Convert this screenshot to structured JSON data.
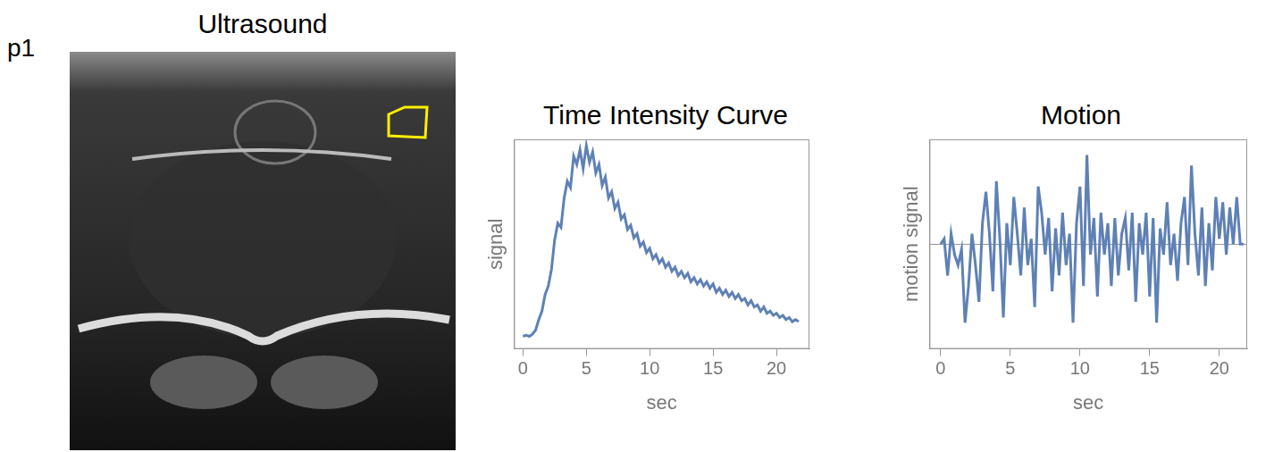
{
  "panel_label": "p1",
  "image": {
    "title": "Ultrasound"
  },
  "chart_data": [
    {
      "type": "line",
      "title": "Time Intensity Curve",
      "x_label": "sec",
      "y_label": "signal",
      "x": [
        0,
        0.25,
        0.5,
        0.75,
        1,
        1.25,
        1.5,
        1.75,
        2,
        2.25,
        2.5,
        2.75,
        3,
        3.25,
        3.5,
        3.75,
        4,
        4.25,
        4.5,
        4.75,
        5,
        5.25,
        5.5,
        5.75,
        6,
        6.25,
        6.5,
        6.75,
        7,
        7.25,
        7.5,
        7.75,
        8,
        8.25,
        8.5,
        8.75,
        9,
        9.25,
        9.5,
        9.75,
        10,
        10.25,
        10.5,
        10.75,
        11,
        11.25,
        11.5,
        11.75,
        12,
        12.25,
        12.5,
        12.75,
        13,
        13.25,
        13.5,
        13.75,
        14,
        14.25,
        14.5,
        14.75,
        15,
        15.25,
        15.5,
        15.75,
        16,
        16.25,
        16.5,
        16.75,
        17,
        17.25,
        17.5,
        17.75,
        18,
        18.25,
        18.5,
        18.75,
        19,
        19.25,
        19.5,
        19.75,
        20,
        20.25,
        20.5,
        20.75,
        21,
        21.25,
        21.5,
        21.75
      ],
      "values": [
        6,
        6.5,
        6,
        7,
        9,
        14,
        18,
        26,
        30,
        38,
        52,
        60,
        58,
        72,
        80,
        77,
        92,
        88,
        95,
        86,
        97,
        89,
        94,
        84,
        88,
        78,
        82,
        72,
        75,
        67,
        70,
        62,
        64,
        57,
        59,
        53,
        55,
        49,
        51,
        46,
        48,
        43,
        45,
        41,
        43,
        39,
        41,
        37,
        39,
        35,
        37,
        34,
        36,
        32,
        34,
        31,
        33,
        30,
        32,
        29,
        31,
        27,
        29,
        26,
        28,
        25,
        27,
        24,
        26,
        23,
        24,
        21,
        23,
        20,
        21,
        18,
        20,
        17,
        18,
        16,
        17,
        15,
        16,
        14,
        15,
        13,
        14,
        13
      ],
      "color": "#5e81b5",
      "marker": "none",
      "line_style": "solid",
      "xlim": [
        -0.7,
        22.6
      ],
      "xticks": [
        0,
        5,
        10,
        15,
        20
      ],
      "ylim": [
        0,
        100
      ],
      "yticks": [],
      "grid": false,
      "tick_labels": "x"
    },
    {
      "type": "line",
      "title": "Motion",
      "x_label": "sec",
      "y_label": "motion signal",
      "x": [
        0,
        0.25,
        0.5,
        0.75,
        1,
        1.25,
        1.5,
        1.75,
        2,
        2.25,
        2.5,
        2.75,
        3,
        3.25,
        3.5,
        3.75,
        4,
        4.25,
        4.5,
        4.75,
        5,
        5.25,
        5.5,
        5.75,
        6,
        6.25,
        6.5,
        6.75,
        7,
        7.25,
        7.5,
        7.75,
        8,
        8.25,
        8.5,
        8.75,
        9,
        9.25,
        9.5,
        9.75,
        10,
        10.25,
        10.5,
        10.75,
        11,
        11.25,
        11.5,
        11.75,
        12,
        12.25,
        12.5,
        12.75,
        13,
        13.25,
        13.5,
        13.75,
        14,
        14.25,
        14.5,
        14.75,
        15,
        15.25,
        15.5,
        15.75,
        16,
        16.25,
        16.5,
        16.75,
        17,
        17.25,
        17.5,
        17.75,
        18,
        18.25,
        18.5,
        18.75,
        19,
        19.25,
        19.5,
        19.75,
        20,
        20.25,
        20.5,
        20.75,
        21,
        21.25,
        21.5,
        21.75
      ],
      "values": [
        0,
        0.05,
        -0.3,
        0.1,
        -0.1,
        -0.2,
        -0.05,
        -0.75,
        -0.4,
        0.1,
        -0.2,
        -0.55,
        0.2,
        0.5,
        0.1,
        -0.45,
        0.6,
        0.05,
        -0.7,
        0.2,
        -0.2,
        0.45,
        0.1,
        -0.3,
        0.35,
        -0.2,
        0.05,
        -0.6,
        0.55,
        0.3,
        -0.1,
        0.25,
        -0.45,
        0.15,
        -0.3,
        0.3,
        -0.2,
        0.1,
        -0.75,
        0.2,
        0.55,
        -0.4,
        0.85,
        -0.1,
        0.25,
        -0.5,
        0.3,
        -0.1,
        0.2,
        -0.4,
        0.25,
        -0.3,
        0.1,
        0.25,
        -0.25,
        0.3,
        -0.55,
        0.2,
        -0.1,
        0.3,
        -0.5,
        0.25,
        -0.75,
        0.15,
        -0.1,
        0.4,
        -0.2,
        0.1,
        -0.35,
        0.2,
        0.45,
        -0.2,
        0.75,
        0.1,
        -0.3,
        0.35,
        -0.4,
        0.2,
        -0.25,
        0.45,
        0.05,
        0.4,
        -0.1,
        0.35,
        0,
        0.45,
        0,
        0
      ],
      "color": "#5e81b5",
      "marker": "none",
      "line_style": "solid",
      "xlim": [
        -0.8,
        22
      ],
      "xticks": [
        0,
        5,
        10,
        15,
        20
      ],
      "ylim": [
        -1,
        1
      ],
      "yticks": [
        0
      ],
      "grid": true,
      "tick_labels": "x"
    }
  ]
}
